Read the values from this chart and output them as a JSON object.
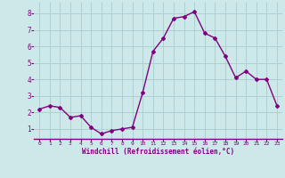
{
  "x": [
    0,
    1,
    2,
    3,
    4,
    5,
    6,
    7,
    8,
    9,
    10,
    11,
    12,
    13,
    14,
    15,
    16,
    17,
    18,
    19,
    20,
    21,
    22,
    23
  ],
  "y": [
    2.2,
    2.4,
    2.3,
    1.7,
    1.8,
    1.1,
    0.7,
    0.9,
    1.0,
    1.1,
    3.2,
    5.7,
    6.5,
    7.7,
    7.8,
    8.1,
    6.8,
    6.5,
    5.4,
    4.1,
    4.5,
    4.0,
    4.0,
    2.4
  ],
  "line_color": "#800080",
  "marker": "D",
  "marker_size": 2,
  "bg_color": "#cce8e8",
  "grid_color": "#aacccc",
  "xlabel": "Windchill (Refroidissement éolien,°C)",
  "ylabel_ticks": [
    1,
    2,
    3,
    4,
    5,
    6,
    7,
    8
  ],
  "xlim": [
    -0.5,
    23.5
  ],
  "ylim": [
    0.4,
    8.7
  ],
  "tick_color": "#800080",
  "line_width": 1.0
}
